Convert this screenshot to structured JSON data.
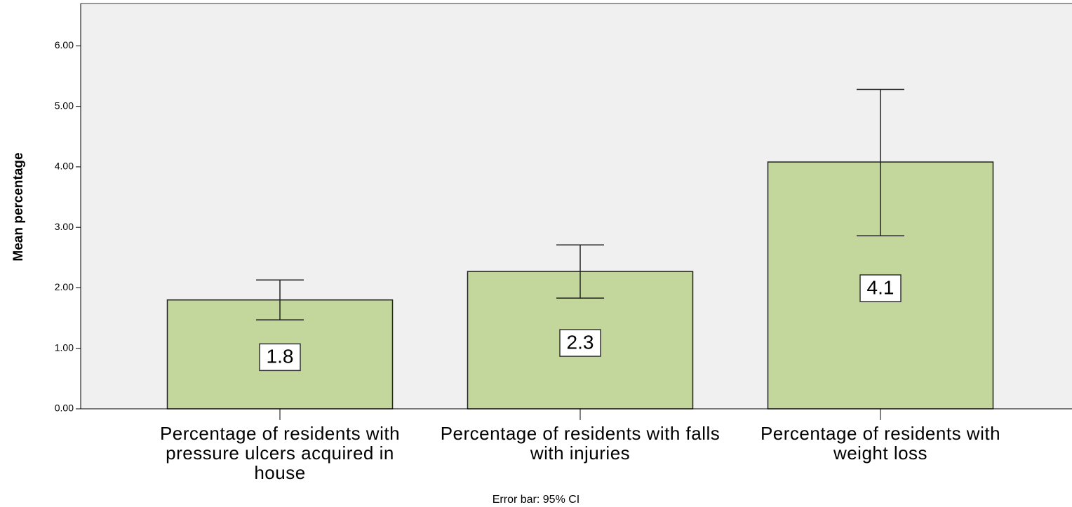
{
  "chart_data": {
    "type": "bar",
    "y_label": "Mean percentage",
    "note": "Error bar: 95% CI",
    "categories": [
      "Percentage of residents with pressure ulcers acquired in house",
      "Percentage of residents with falls with injuries",
      "Percentage of residents with weight loss"
    ],
    "values": [
      1.8,
      2.27,
      4.08
    ],
    "value_labels": [
      "1.8",
      "2.3",
      "4.1"
    ],
    "ci_lower": [
      1.47,
      1.83,
      2.86
    ],
    "ci_upper": [
      2.13,
      2.71,
      5.28
    ],
    "color": "#c3d69b",
    "ylim": [
      0,
      6.7
    ],
    "yticks": [
      {
        "value": 0,
        "label": "0.00"
      },
      {
        "value": 1,
        "label": "1.00"
      },
      {
        "value": 2,
        "label": "2.00"
      },
      {
        "value": 3,
        "label": "3.00"
      },
      {
        "value": 4,
        "label": "4.00"
      },
      {
        "value": 5,
        "label": "5.00"
      },
      {
        "value": 6,
        "label": "6.00"
      }
    ]
  }
}
